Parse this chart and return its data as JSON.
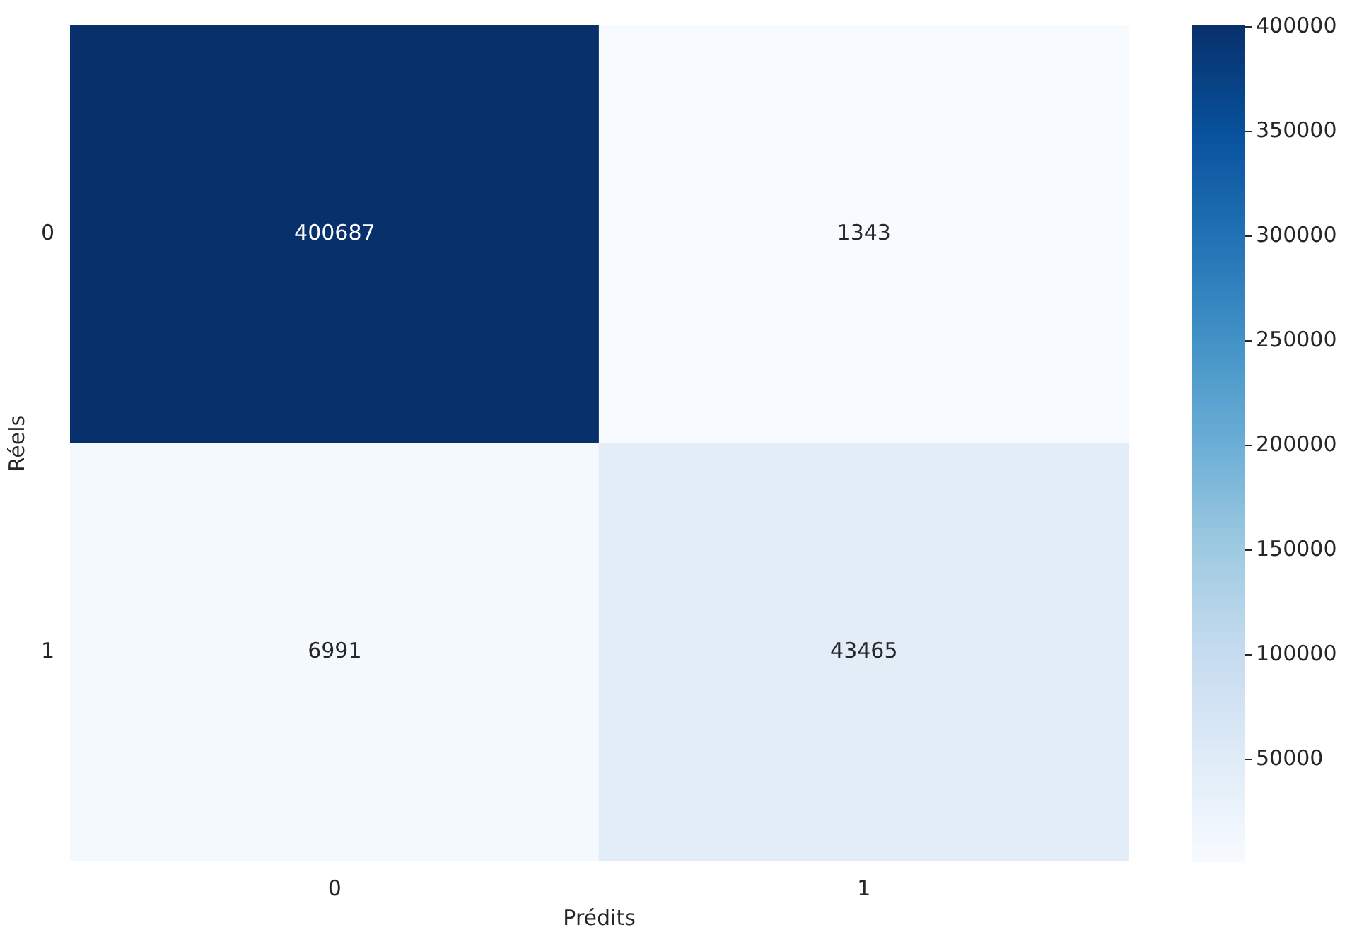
{
  "chart_data": {
    "type": "heatmap",
    "xlabel": "Prédits",
    "ylabel": "Réels",
    "categories": [
      "0",
      "1"
    ],
    "y_categories": [
      "0",
      "1"
    ],
    "cells": [
      [
        400687,
        1343
      ],
      [
        6991,
        43465
      ]
    ],
    "data_labels": true,
    "clim": [
      1343,
      400687
    ],
    "cticks": [
      50000,
      100000,
      150000,
      200000,
      250000,
      300000,
      350000,
      400000
    ],
    "grid": false,
    "legend": false
  }
}
